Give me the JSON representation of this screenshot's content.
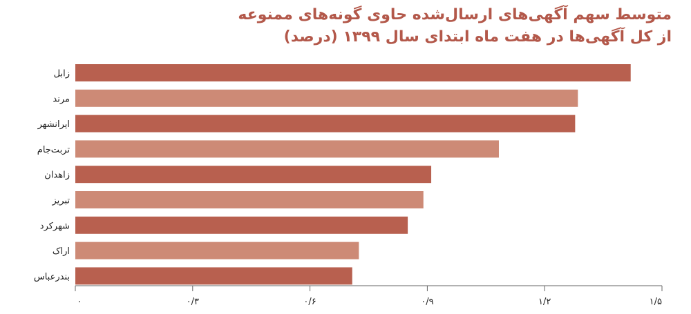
{
  "chart_data": {
    "type": "bar",
    "orientation": "horizontal",
    "title": "متوسط سهم آگهی‌های ارسال‌شده حاوی گونه‌های ممنوعه از کل آگهی‌ها در هفت ماه ابتدای سال ۱۳۹۹ (درصد)",
    "title_lines": [
      "متوسط سهم آگهی‌های ارسال‌شده حاوی گونه‌های ممنوعه",
      "از کل آگهی‌ها در هفت ماه ابتدای سال ۱۳۹۹ (درصد)"
    ],
    "categories": [
      "زابل",
      "مرند",
      "ایرانشهر",
      "تربت‌جام",
      "زاهدان",
      "تبریز",
      "شهرکرد",
      "اراک",
      "بندرعباس"
    ],
    "values": [
      1.42,
      1.285,
      1.278,
      1.083,
      0.91,
      0.89,
      0.85,
      0.725,
      0.708
    ],
    "xlim": [
      0,
      1.5
    ],
    "xticks": [
      0,
      0.3,
      0.6,
      0.9,
      1.2,
      1.5
    ],
    "xtick_labels": [
      "۰",
      "۰/۳",
      "۰/۶",
      "۰/۹",
      "۱/۲",
      "۱/۵"
    ],
    "xlabel": "",
    "ylabel": "",
    "grid": false,
    "bar_colors": [
      "#b8604f",
      "#cd8a76"
    ],
    "axis_color": "#666666"
  }
}
